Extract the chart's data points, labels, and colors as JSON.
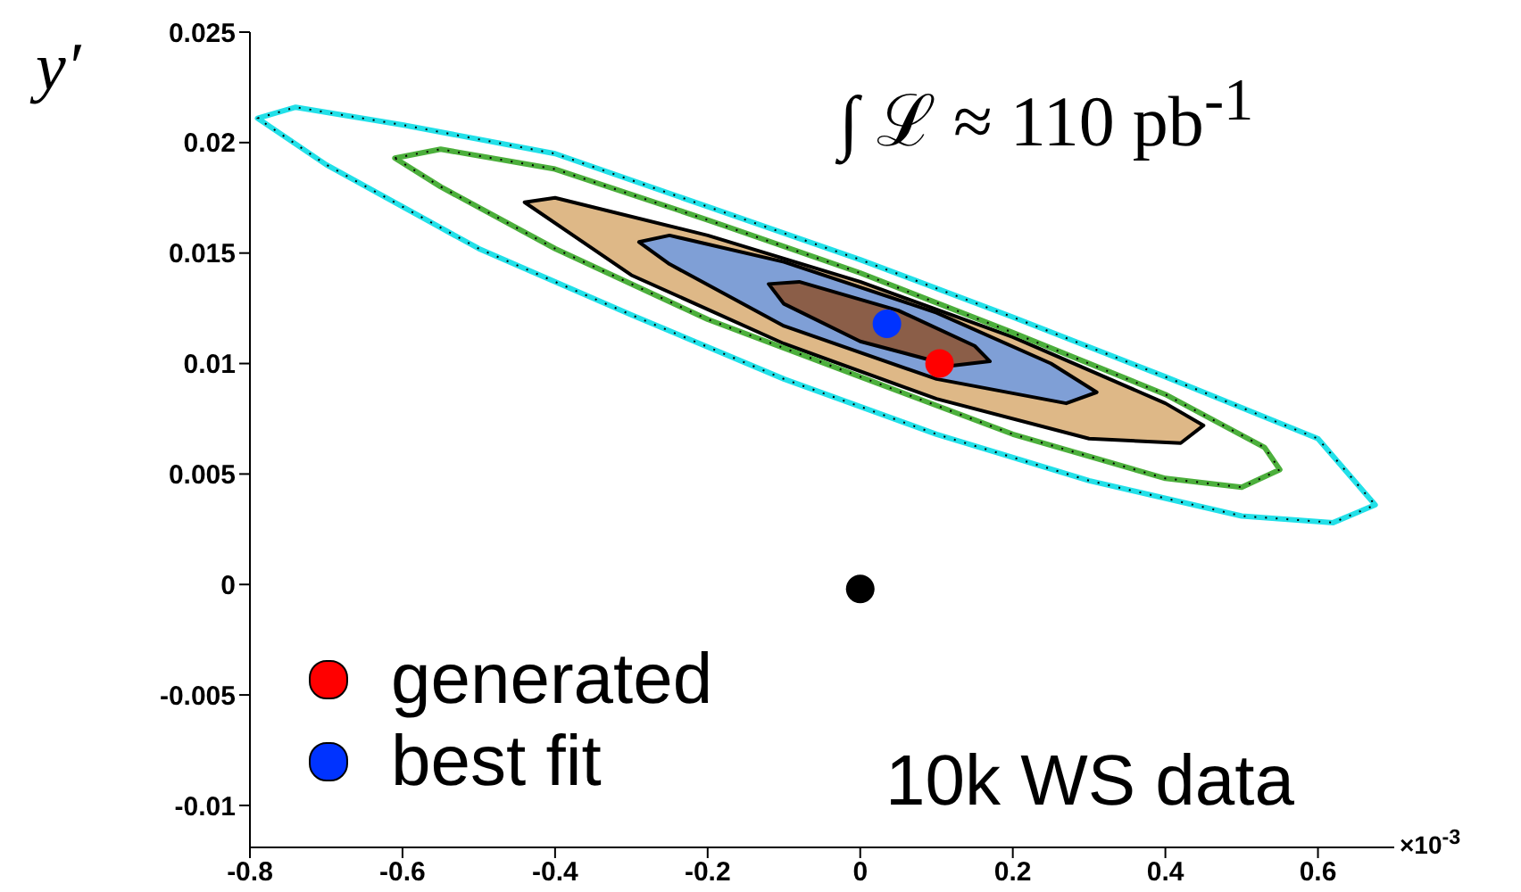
{
  "chart_data": {
    "type": "scatter",
    "ylabel": "y′",
    "xlim": [
      -0.8,
      0.7
    ],
    "xticks": [
      -0.8,
      -0.6,
      -0.4,
      -0.2,
      0,
      0.2,
      0.4,
      0.6
    ],
    "ylim": [
      -0.0119,
      0.025
    ],
    "yticks": [
      -0.01,
      -0.005,
      0,
      0.005,
      0.01,
      0.015,
      0.02,
      0.025
    ],
    "legend": "bottom left",
    "annotations": [
      "∫ ℒ ≈ 110 pb$^{-1}$",
      "10k WS data",
      "×10$^{-3}$"
    ],
    "series": [
      {
        "type": "area",
        "color": "#deb887",
        "x": [
          -0.44,
          -0.4,
          -0.2,
          0,
          0.2,
          0.4,
          0.45,
          0.42,
          0.3,
          0.1,
          -0.1,
          -0.3,
          -0.44
        ],
        "values": [
          0.0173,
          0.0175,
          0.0158,
          0.0137,
          0.0112,
          0.0082,
          0.0072,
          0.0064,
          0.0066,
          0.0084,
          0.0109,
          0.014,
          0.0173
        ]
      },
      {
        "type": "area",
        "color": "#7f9fd6",
        "x": [
          -0.29,
          -0.25,
          -0.1,
          0.1,
          0.25,
          0.31,
          0.27,
          0.1,
          -0.1,
          -0.25,
          -0.29
        ],
        "values": [
          0.0155,
          0.0158,
          0.0146,
          0.0123,
          0.01,
          0.0087,
          0.0082,
          0.0093,
          0.0117,
          0.0145,
          0.0155
        ]
      },
      {
        "type": "area",
        "color": "#8b5e48",
        "x": [
          -0.12,
          -0.08,
          0.05,
          0.15,
          0.17,
          0.12,
          0,
          -0.1,
          -0.12
        ],
        "values": [
          0.0136,
          0.0137,
          0.0124,
          0.0108,
          0.0101,
          0.0099,
          0.011,
          0.0127,
          0.0136
        ]
      },
      {
        "color": "#000000",
        "x": [
          0
        ],
        "values": [
          -0.0002
        ]
      },
      {
        "name": "generated",
        "color": "#ff0000",
        "x": [
          0.104
        ],
        "values": [
          0.01
        ]
      },
      {
        "name": "best fit",
        "color": "#0033ff",
        "x": [
          0.035
        ],
        "values": [
          0.0118
        ]
      }
    ]
  }
}
